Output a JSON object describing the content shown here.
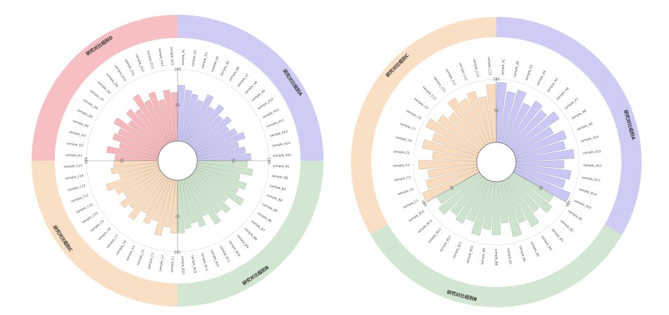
{
  "chart_data": [
    {
      "type": "bar",
      "subtype": "circular-grouped-bar",
      "rlim": [
        0,
        100
      ],
      "ring_ticks": [
        50,
        100
      ],
      "groups": [
        {
          "name": "研究对比组别A",
          "color": "#c9c7f3",
          "categories": [
            "sample_A1",
            "sample_A2",
            "sample_A3",
            "sample_A4",
            "sample_A5",
            "sample_A6",
            "sample_A7",
            "sample_A8",
            "sample_A9",
            "sample_A10",
            "sample_A11",
            "sample_A12",
            "sample_A13",
            "sample_A14",
            "sample_A15"
          ],
          "values": [
            78,
            72,
            68,
            62,
            74,
            60,
            70,
            58,
            66,
            56,
            64,
            72,
            60,
            68,
            75
          ]
        },
        {
          "name": "研究对比组别B",
          "color": "#cde4cc",
          "categories": [
            "sample_B1",
            "sample_B2",
            "sample_B3",
            "sample_B4",
            "sample_B5",
            "sample_B6",
            "sample_B7",
            "sample_B8",
            "sample_B9",
            "sample_B10",
            "sample_B11",
            "sample_B12",
            "sample_B13",
            "sample_B14",
            "sample_B15"
          ],
          "values": [
            70,
            78,
            62,
            74,
            66,
            80,
            60,
            72,
            64,
            76,
            58,
            70,
            62,
            68,
            74
          ]
        },
        {
          "name": "研究对比组别C",
          "color": "#f8dcbd",
          "categories": [
            "sample_C1",
            "sample_C2",
            "sample_C3",
            "sample_C4",
            "sample_C5",
            "sample_C6",
            "sample_C7",
            "sample_C8",
            "sample_C9",
            "sample_C10",
            "sample_C11",
            "sample_C12",
            "sample_C13",
            "sample_C14",
            "sample_C15"
          ],
          "values": [
            74,
            66,
            80,
            62,
            70,
            58,
            76,
            64,
            72,
            60,
            68,
            78,
            56,
            66,
            62
          ]
        },
        {
          "name": "研究对比组别D",
          "color": "#f6b8bb",
          "categories": [
            "sample_D1",
            "sample_D2",
            "sample_D3",
            "sample_D4",
            "sample_D5",
            "sample_D6",
            "sample_D7",
            "sample_D8",
            "sample_D9",
            "sample_D10",
            "sample_D11",
            "sample_D12",
            "sample_D13",
            "sample_D14",
            "sample_D15"
          ],
          "values": [
            60,
            72,
            56,
            68,
            64,
            76,
            58,
            70,
            62,
            80,
            66,
            74,
            60,
            72,
            68
          ]
        }
      ]
    },
    {
      "type": "bar",
      "subtype": "circular-grouped-bar",
      "rlim": [
        0,
        100
      ],
      "ring_ticks": [
        50,
        100
      ],
      "groups": [
        {
          "name": "研究对比组别A",
          "color": "#c9c7f3",
          "categories": [
            "sample_A1",
            "sample_A2",
            "sample_A3",
            "sample_A4",
            "sample_A5",
            "sample_A6",
            "sample_A7",
            "sample_A8",
            "sample_A9",
            "sample_A10",
            "sample_A11",
            "sample_A12",
            "sample_A13",
            "sample_A14",
            "sample_A15"
          ],
          "values": [
            95,
            82,
            88,
            72,
            84,
            78,
            90,
            70,
            86,
            80,
            92,
            76,
            88,
            82,
            96
          ]
        },
        {
          "name": "研究对比组别B",
          "color": "#cde4cc",
          "categories": [
            "sample_B1",
            "sample_B2",
            "sample_B3",
            "sample_B4",
            "sample_B5",
            "sample_B6",
            "sample_B7",
            "sample_B8",
            "sample_B9",
            "sample_B10",
            "sample_B11",
            "sample_B12",
            "sample_B13",
            "sample_B14",
            "sample_B15"
          ],
          "values": [
            74,
            82,
            68,
            86,
            72,
            90,
            66,
            84,
            76,
            88,
            70,
            80,
            74,
            86,
            78
          ]
        },
        {
          "name": "研究对比组别C",
          "color": "#f8dcbd",
          "categories": [
            "sample_C1",
            "sample_C2",
            "sample_C3",
            "sample_C4",
            "sample_C5",
            "sample_C6",
            "sample_C7",
            "sample_C8",
            "sample_C9",
            "sample_C10",
            "sample_C11",
            "sample_C12",
            "sample_C13",
            "sample_C14",
            "sample_C15"
          ],
          "values": [
            96,
            84,
            78,
            92,
            70,
            88,
            76,
            94,
            82,
            72,
            90,
            80,
            86,
            74,
            92
          ]
        }
      ]
    }
  ]
}
